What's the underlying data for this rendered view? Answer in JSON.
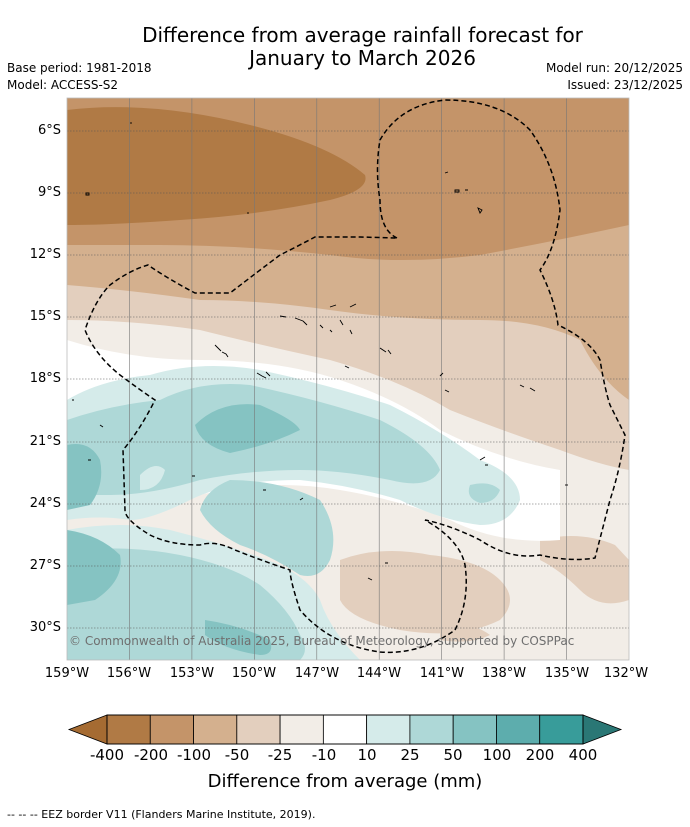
{
  "header": {
    "title_line1": "Difference from average rainfall forecast for",
    "title_line2": "January to March 2026",
    "base_period": "Base period: 1981-2018",
    "model": "Model: ACCESS-S2",
    "model_run": "Model run: 20/12/2025",
    "issued": "Issued: 23/12/2025"
  },
  "map": {
    "lat_ticks": [
      "6°S",
      "9°S",
      "12°S",
      "15°S",
      "18°S",
      "21°S",
      "24°S",
      "27°S",
      "30°S"
    ],
    "lon_ticks": [
      "159°W",
      "156°W",
      "153°W",
      "150°W",
      "147°W",
      "144°W",
      "141°W",
      "138°W",
      "135°W",
      "132°W"
    ],
    "copyright": "© Commonwealth of Australia 2025, Bureau of Meteorology, supported by COSPPac"
  },
  "colorbar": {
    "labels": [
      "-400",
      "-200",
      "-100",
      "-50",
      "-25",
      "-10",
      "10",
      "25",
      "50",
      "100",
      "200",
      "400"
    ],
    "colors": [
      "#a56b32",
      "#b07a45",
      "#c49469",
      "#d4b08e",
      "#e3cfbe",
      "#f2ede7",
      "#ffffff",
      "#d5ebea",
      "#aed8d7",
      "#85c3c2",
      "#5dadad",
      "#389c9a",
      "#2a7775"
    ],
    "title": "Difference from average (mm)"
  },
  "footnote": "--  --  -- EEZ border V11 (Flanders Marine Institute, 2019)."
}
